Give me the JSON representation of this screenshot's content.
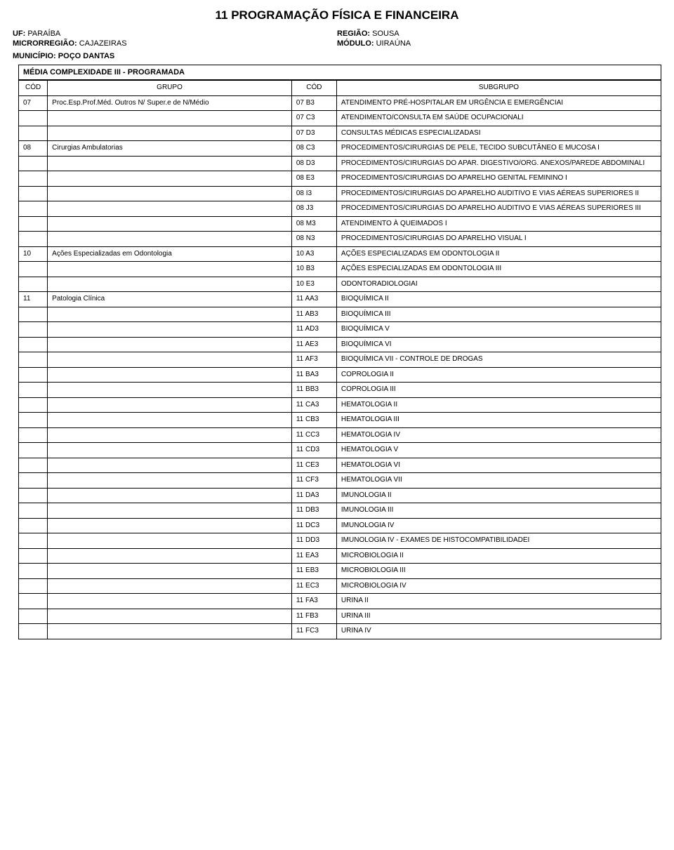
{
  "page_title": "11 PROGRAMAÇÃO FÍSICA E FINANCEIRA",
  "header": {
    "uf_label": "UF:",
    "uf": "PARAÍBA",
    "regiao_label": "REGIÃO:",
    "regiao": "SOUSA",
    "micro_label": "MICRORREGIÃO:",
    "micro": "CAJAZEIRAS",
    "modulo_label": "MÓDULO:",
    "modulo": "UIRAÚNA",
    "municipio_label": "MUNICÍPIO:",
    "municipio": "POÇO DANTAS"
  },
  "section_title": "MÉDIA COMPLEXIDADE III - PROGRAMADA",
  "columns": {
    "cod1": "CÓD",
    "grupo": "GRUPO",
    "cod2": "CÓD",
    "subgrupo": "SUBGRUPO"
  },
  "rows": [
    {
      "cod1": "07",
      "grupo": "Proc.Esp.Prof.Méd. Outros N/ Super.e de N/Médio",
      "cod2": "07 B3",
      "sub": "ATENDIMENTO PRÉ-HOSPITALAR EM URGÊNCIA E EMERGÊNCIAI"
    },
    {
      "cod1": "",
      "grupo": "",
      "cod2": "07 C3",
      "sub": "ATENDIMENTO/CONSULTA EM SAÚDE OCUPACIONALI"
    },
    {
      "cod1": "",
      "grupo": "",
      "cod2": "07 D3",
      "sub": "CONSULTAS MÉDICAS ESPECIALIZADASI"
    },
    {
      "cod1": "08",
      "grupo": "Cirurgias Ambulatorias",
      "cod2": "08 C3",
      "sub": "PROCEDIMENTOS/CIRURGIAS DE PELE, TECIDO SUBCUTÂNEO E MUCOSA I"
    },
    {
      "cod1": "",
      "grupo": "",
      "cod2": "08 D3",
      "sub": "PROCEDIMENTOS/CIRURGIAS DO APAR. DIGESTIVO/ORG. ANEXOS/PAREDE ABDOMINALI"
    },
    {
      "cod1": "",
      "grupo": "",
      "cod2": "08 E3",
      "sub": "PROCEDIMENTOS/CIRURGIAS DO APARELHO GENITAL FEMININO I"
    },
    {
      "cod1": "",
      "grupo": "",
      "cod2": "08 I3",
      "sub": "PROCEDIMENTOS/CIRURGIAS DO APARELHO AUDITIVO E VIAS AÉREAS SUPERIORES II"
    },
    {
      "cod1": "",
      "grupo": "",
      "cod2": "08 J3",
      "sub": "PROCEDIMENTOS/CIRURGIAS DO APARELHO AUDITIVO E VIAS AÉREAS SUPERIORES III"
    },
    {
      "cod1": "",
      "grupo": "",
      "cod2": "08 M3",
      "sub": "ATENDIMENTO À QUEIMADOS I"
    },
    {
      "cod1": "",
      "grupo": "",
      "cod2": "08 N3",
      "sub": "PROCEDIMENTOS/CIRURGIAS DO APARELHO VISUAL I"
    },
    {
      "cod1": "10",
      "grupo": "Ações Especializadas em Odontologia",
      "cod2": "10 A3",
      "sub": "AÇÕES ESPECIALIZADAS EM ODONTOLOGIA II"
    },
    {
      "cod1": "",
      "grupo": "",
      "cod2": "10 B3",
      "sub": "AÇÕES ESPECIALIZADAS EM ODONTOLOGIA III"
    },
    {
      "cod1": "",
      "grupo": "",
      "cod2": "10 E3",
      "sub": "ODONTORADIOLOGIAI"
    },
    {
      "cod1": "11",
      "grupo": "Patologia Clínica",
      "cod2": "11 AA3",
      "sub": "BIOQUÍMICA II"
    },
    {
      "cod1": "",
      "grupo": "",
      "cod2": "11 AB3",
      "sub": "BIOQUÍMICA III"
    },
    {
      "cod1": "",
      "grupo": "",
      "cod2": "11 AD3",
      "sub": "BIOQUÍMICA V"
    },
    {
      "cod1": "",
      "grupo": "",
      "cod2": "11 AE3",
      "sub": "BIOQUÍMICA VI"
    },
    {
      "cod1": "",
      "grupo": "",
      "cod2": "11 AF3",
      "sub": "BIOQUÍMICA VII - CONTROLE DE DROGAS"
    },
    {
      "cod1": "",
      "grupo": "",
      "cod2": "11 BA3",
      "sub": "COPROLOGIA II"
    },
    {
      "cod1": "",
      "grupo": "",
      "cod2": "11 BB3",
      "sub": "COPROLOGIA III"
    },
    {
      "cod1": "",
      "grupo": "",
      "cod2": "11 CA3",
      "sub": "HEMATOLOGIA II"
    },
    {
      "cod1": "",
      "grupo": "",
      "cod2": "11 CB3",
      "sub": "HEMATOLOGIA III"
    },
    {
      "cod1": "",
      "grupo": "",
      "cod2": "11 CC3",
      "sub": "HEMATOLOGIA IV"
    },
    {
      "cod1": "",
      "grupo": "",
      "cod2": "11 CD3",
      "sub": "HEMATOLOGIA V"
    },
    {
      "cod1": "",
      "grupo": "",
      "cod2": "11 CE3",
      "sub": "HEMATOLOGIA VI"
    },
    {
      "cod1": "",
      "grupo": "",
      "cod2": "11 CF3",
      "sub": "HEMATOLOGIA VII"
    },
    {
      "cod1": "",
      "grupo": "",
      "cod2": "11 DA3",
      "sub": "IMUNOLOGIA II"
    },
    {
      "cod1": "",
      "grupo": "",
      "cod2": "11 DB3",
      "sub": "IMUNOLOGIA III"
    },
    {
      "cod1": "",
      "grupo": "",
      "cod2": "11 DC3",
      "sub": "IMUNOLOGIA IV"
    },
    {
      "cod1": "",
      "grupo": "",
      "cod2": "11 DD3",
      "sub": "IMUNOLOGIA IV - EXAMES DE HISTOCOMPATIBILIDADEI"
    },
    {
      "cod1": "",
      "grupo": "",
      "cod2": "11 EA3",
      "sub": "MICROBIOLOGIA II"
    },
    {
      "cod1": "",
      "grupo": "",
      "cod2": "11 EB3",
      "sub": "MICROBIOLOGIA III"
    },
    {
      "cod1": "",
      "grupo": "",
      "cod2": "11 EC3",
      "sub": "MICROBIOLOGIA IV"
    },
    {
      "cod1": "",
      "grupo": "",
      "cod2": "11 FA3",
      "sub": "URINA II"
    },
    {
      "cod1": "",
      "grupo": "",
      "cod2": "11 FB3",
      "sub": "URINA III"
    },
    {
      "cod1": "",
      "grupo": "",
      "cod2": "11 FC3",
      "sub": "URINA IV"
    }
  ]
}
